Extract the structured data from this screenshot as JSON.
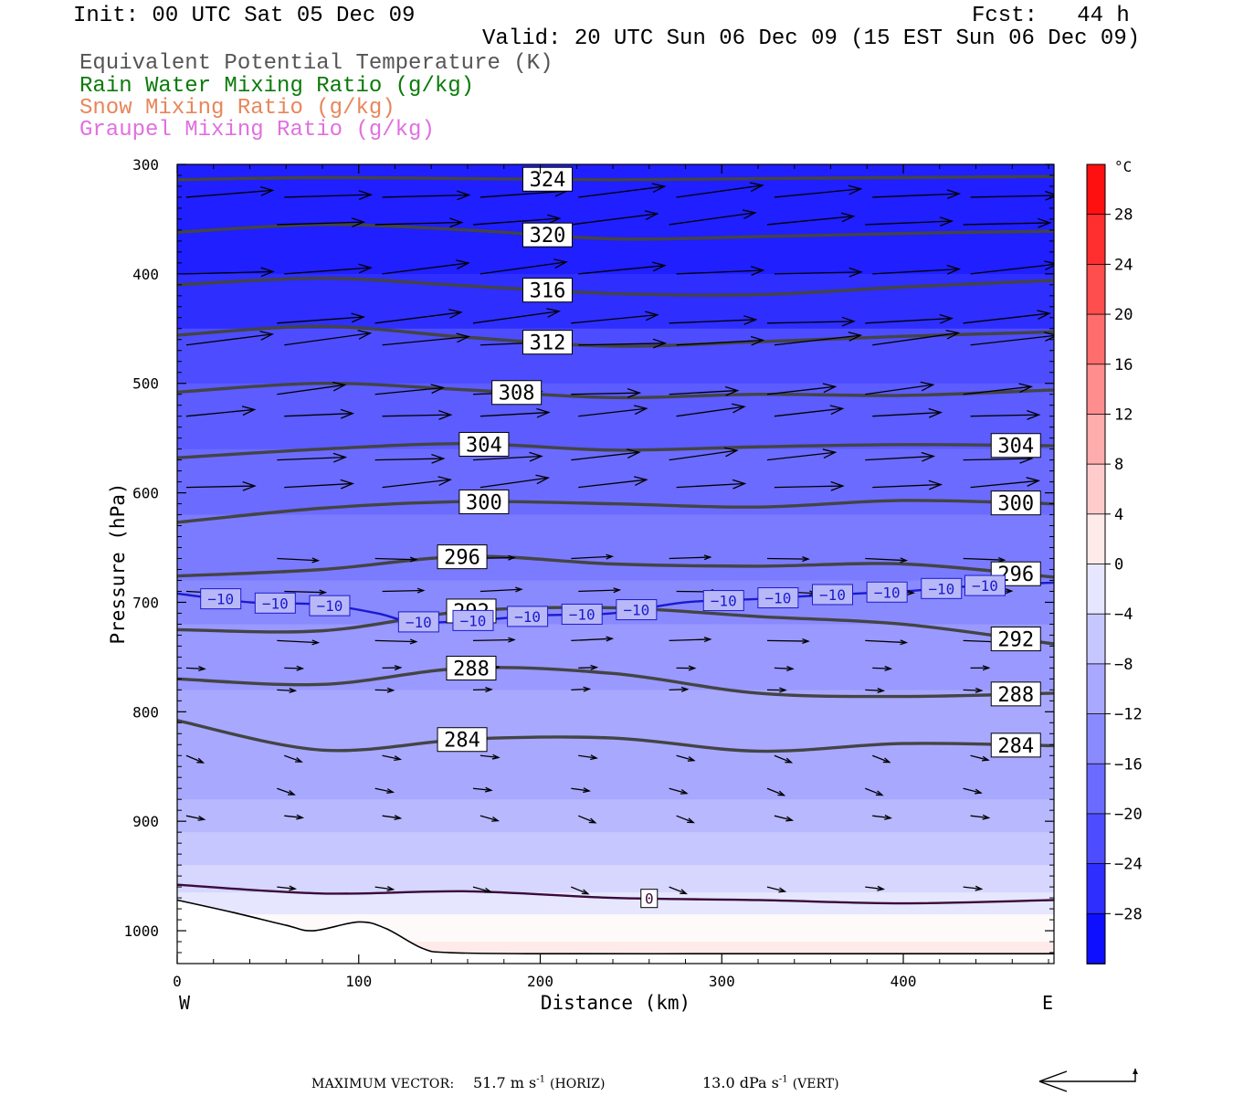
{
  "header": {
    "init": "Init: 00 UTC Sat 05 Dec 09",
    "fcst": "Fcst:   44 h",
    "valid": "Valid: 20 UTC Sun 06 Dec 09 (15 EST Sun 06 Dec 09)",
    "legend": [
      {
        "text": "Equivalent Potential Temperature (K)",
        "color": "#555555"
      },
      {
        "text": "Rain Water Mixing Ratio (g/kg)",
        "color": "#0a7a0a"
      },
      {
        "text": "Snow Mixing Ratio (g/kg)",
        "color": "#e8865a"
      },
      {
        "text": "Graupel Mixing Ratio (g/kg)",
        "color": "#e070e0"
      }
    ]
  },
  "chart_data": {
    "type": "heatmap",
    "description_fields": "Cross-section: shaded temperature (°C), contoured equivalent potential temperature (K), wind vectors",
    "xlabel": "Distance (km)",
    "ylabel": "Pressure (hPa)",
    "x_ticks": [
      0,
      100,
      200,
      300,
      400
    ],
    "xlim": [
      0,
      483
    ],
    "y_ticks": [
      300,
      400,
      500,
      600,
      700,
      800,
      900,
      1000
    ],
    "ylim": [
      300,
      1030
    ],
    "y_scale": "pressure (inverted)",
    "left_end_label": "W",
    "right_end_label": "E",
    "theta_e_contours": [
      {
        "value": 324,
        "pressure": [
          314,
          312,
          313,
          314,
          313,
          312,
          311
        ]
      },
      {
        "value": 320,
        "pressure": [
          362,
          355,
          360,
          368,
          366,
          363,
          361
        ]
      },
      {
        "value": 316,
        "pressure": [
          410,
          404,
          411,
          418,
          419,
          412,
          406
        ]
      },
      {
        "value": 312,
        "pressure": [
          456,
          448,
          458,
          466,
          462,
          457,
          453
        ]
      },
      {
        "value": 308,
        "pressure": [
          508,
          500,
          506,
          513,
          510,
          511,
          506
        ]
      },
      {
        "value": 304,
        "pressure": [
          568,
          560,
          555,
          561,
          558,
          556,
          557
        ]
      },
      {
        "value": 300,
        "pressure": [
          627,
          614,
          608,
          610,
          613,
          607,
          610
        ]
      },
      {
        "value": 296,
        "pressure": [
          676,
          670,
          658,
          665,
          667,
          665,
          677
        ]
      },
      {
        "value": 292,
        "pressure": [
          725,
          726,
          708,
          705,
          713,
          720,
          738
        ]
      },
      {
        "value": 288,
        "pressure": [
          770,
          775,
          760,
          765,
          783,
          786,
          783
        ]
      },
      {
        "value": 284,
        "pressure": [
          808,
          835,
          825,
          824,
          836,
          829,
          831
        ]
      },
      {
        "value": 0,
        "pressure": [
          958,
          966,
          964,
          970,
          972,
          975,
          972
        ]
      }
    ],
    "contour_x": [
      0,
      80,
      160,
      240,
      320,
      400,
      483
    ],
    "theta_e_label_positions_km": {
      "324": 204,
      "320": 204,
      "316": 204,
      "312": 204,
      "308": 187,
      "304": 169,
      "300": 169,
      "296": 157,
      "292": 162,
      "288": 162,
      "284": 157,
      "0": 260
    },
    "theta_e_right_labels": [
      304,
      300,
      296,
      292,
      288,
      284
    ],
    "isotherm_minus10": {
      "value": -10,
      "x": [
        0,
        40,
        80,
        110,
        130,
        160,
        200,
        240,
        280,
        320,
        360,
        400,
        440,
        483
      ],
      "pressure": [
        692,
        700,
        702,
        710,
        718,
        717,
        712,
        710,
        700,
        697,
        693,
        690,
        685,
        682
      ],
      "label_x": [
        24,
        54,
        84,
        133,
        163,
        193,
        223,
        253,
        301,
        331,
        361,
        391,
        421,
        445
      ]
    },
    "temperature_band_pressures": [
      {
        "p": 300,
        "t": -28
      },
      {
        "p": 400,
        "t": -26
      },
      {
        "p": 450,
        "t": -22
      },
      {
        "p": 500,
        "t": -20
      },
      {
        "p": 560,
        "t": -18
      },
      {
        "p": 620,
        "t": -16
      },
      {
        "p": 680,
        "t": -14
      },
      {
        "p": 720,
        "t": -12
      },
      {
        "p": 780,
        "t": -10
      },
      {
        "p": 880,
        "t": -8
      },
      {
        "p": 910,
        "t": -6
      },
      {
        "p": 940,
        "t": -4
      },
      {
        "p": 965,
        "t": -2
      },
      {
        "p": 985,
        "t": 0
      },
      {
        "p": 1010,
        "t": 2
      }
    ],
    "terrain_pressure": {
      "x": [
        0,
        30,
        60,
        75,
        100,
        115,
        135,
        150,
        200,
        300,
        400,
        483
      ],
      "pressure": [
        972,
        983,
        995,
        1000,
        992,
        998,
        1016,
        1020,
        1021,
        1021,
        1021,
        1021
      ]
    },
    "wind_vectors": {
      "rows_hpa": [
        330,
        355,
        400,
        445,
        465,
        510,
        530,
        570,
        595,
        660,
        690,
        735,
        760,
        780,
        840,
        870,
        895,
        960
      ],
      "length_scale_m_s": 51.7
    },
    "colorbar": {
      "unit": "°C",
      "min": -32,
      "max": 32,
      "step": 4,
      "tick_labels": [
        "28",
        "24",
        "20",
        "16",
        "12",
        "8",
        "4",
        "0",
        "−4",
        "−8",
        "−12",
        "−16",
        "−20",
        "−24",
        "−28"
      ]
    }
  },
  "footer": {
    "max_vector_label": "MAXIMUM VECTOR:",
    "horiz_value": "51.7 m s",
    "horiz_unit_exp": "-1",
    "horiz_tag": "(HORIZ)",
    "vert_value": "13.0 dPa s",
    "vert_unit_exp": "-1",
    "vert_tag": "(VERT)"
  }
}
